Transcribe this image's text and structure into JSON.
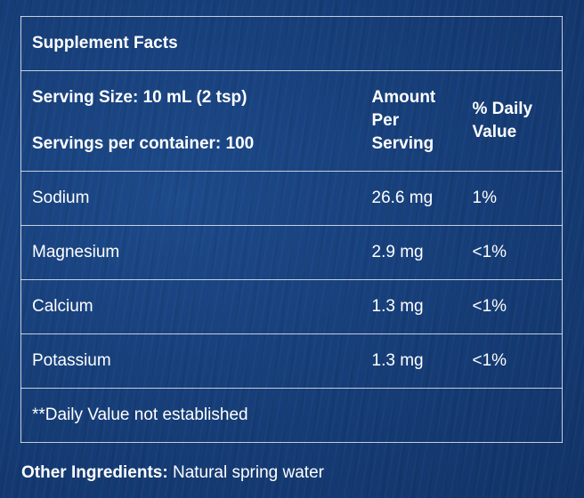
{
  "panel": {
    "title": "Supplement Facts",
    "serving_size": "Serving Size: 10 mL (2 tsp)",
    "servings_per_container": "Servings per container: 100",
    "amount_header": "Amount Per Serving",
    "daily_value_header": "% Daily Value",
    "rows": [
      {
        "nutrient": "Sodium",
        "amount": "26.6 mg",
        "dv": "1%"
      },
      {
        "nutrient": "Magnesium",
        "amount": "2.9 mg",
        "dv": "<1%"
      },
      {
        "nutrient": "Calcium",
        "amount": "1.3 mg",
        "dv": "<1%"
      },
      {
        "nutrient": "Potassium",
        "amount": "1.3 mg",
        "dv": "<1%"
      }
    ],
    "footnote": "**Daily Value not established"
  },
  "other_ingredients": {
    "label": "Other Ingredients:",
    "value": " Natural spring water"
  }
}
